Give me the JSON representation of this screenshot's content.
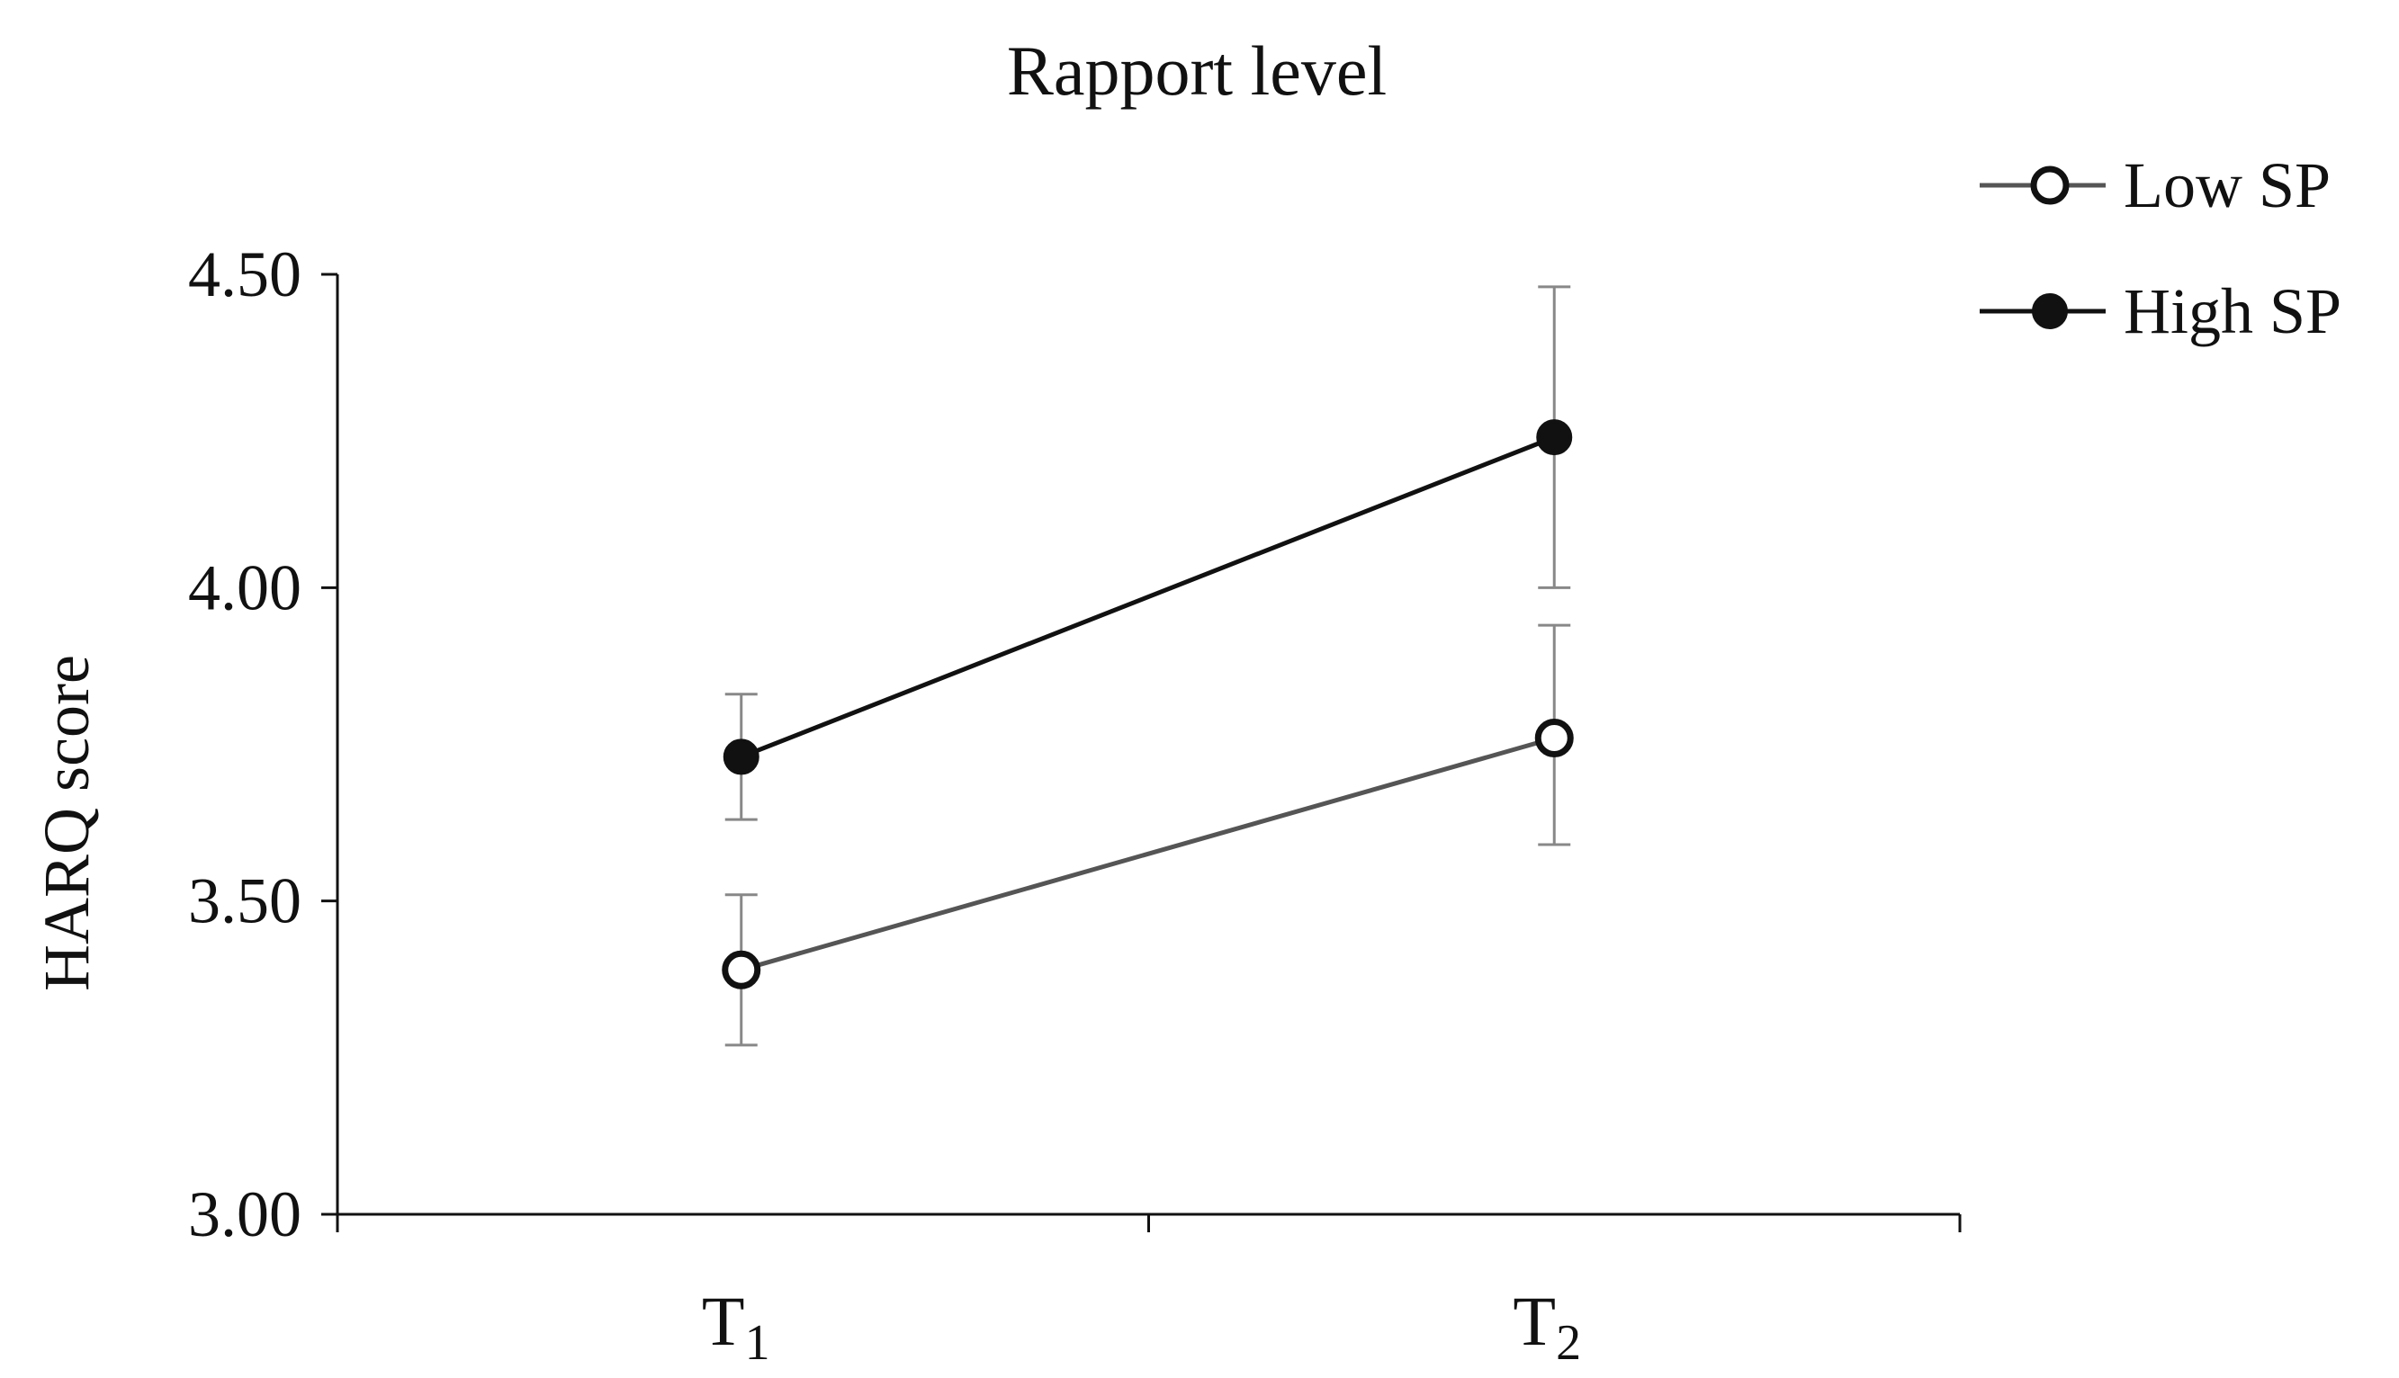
{
  "chart_data": {
    "type": "line",
    "title": "Rapport level",
    "xlabel": "",
    "ylabel": "HARQ score",
    "categories": [
      {
        "base": "T",
        "sub": "1"
      },
      {
        "base": "T",
        "sub": "2"
      }
    ],
    "ylim": [
      3.0,
      4.5
    ],
    "yticks": [
      "3.00",
      "3.50",
      "4.00",
      "4.50"
    ],
    "grid": false,
    "legend_position": "top-right",
    "series": [
      {
        "name": "Low SP",
        "marker": "open-circle",
        "color": "#555555",
        "values": [
          3.39,
          3.76
        ],
        "error_low": [
          3.27,
          3.59
        ],
        "error_high": [
          3.51,
          3.94
        ]
      },
      {
        "name": "High SP",
        "marker": "filled-circle",
        "color": "#111111",
        "values": [
          3.73,
          4.24
        ],
        "error_low": [
          3.63,
          4.0
        ],
        "error_high": [
          3.83,
          4.48
        ]
      }
    ],
    "error_bar_color": "#888888"
  }
}
